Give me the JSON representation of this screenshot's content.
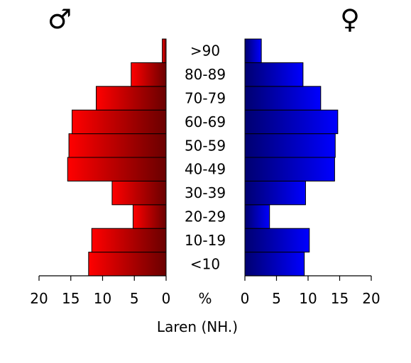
{
  "chart_data": {
    "type": "bar",
    "orientation": "horizontal",
    "layout": "population-pyramid",
    "categories": [
      "<10",
      "10-19",
      "20-29",
      "30-39",
      "40-49",
      "50-59",
      "60-69",
      "70-79",
      "80-89",
      ">90"
    ],
    "series": [
      {
        "name": "♂",
        "values": [
          12.2,
          11.7,
          5.2,
          8.5,
          15.5,
          15.3,
          14.8,
          11.0,
          5.5,
          0.6
        ],
        "color": "#ff0000"
      },
      {
        "name": "♀",
        "values": [
          9.4,
          10.2,
          3.9,
          9.6,
          14.2,
          14.3,
          14.7,
          12.0,
          9.2,
          2.6
        ],
        "color": "#0000ff"
      }
    ],
    "xlim": [
      0,
      20
    ],
    "xticks": [
      "20",
      "15",
      "10",
      "5",
      "0"
    ],
    "xticks_right": [
      "0",
      "5",
      "10",
      "15",
      "20"
    ],
    "center_label": "%",
    "xlabel": "Laren (NH.)",
    "legend": {
      "male_symbol": "♂",
      "female_symbol": "♀",
      "placement": "top"
    },
    "grid": false
  }
}
